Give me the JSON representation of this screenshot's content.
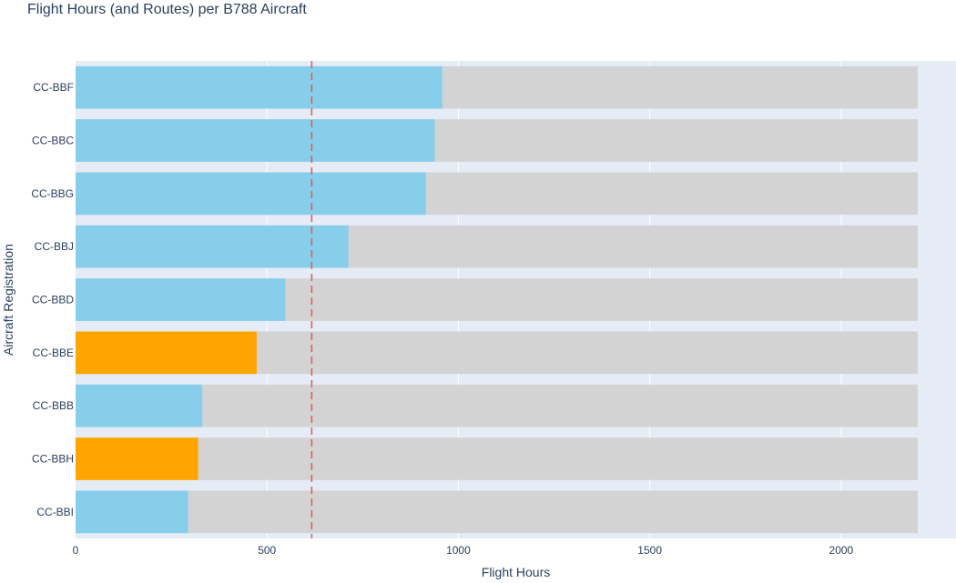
{
  "chart_data": {
    "type": "bar",
    "orientation": "horizontal",
    "barmode": "overlay",
    "title": "Flight Hours (and Routes) per B788 Aircraft",
    "xlabel": "Flight Hours",
    "ylabel": "Aircraft Registration",
    "xlim": [
      0,
      2300
    ],
    "xticks": [
      0,
      500,
      1000,
      1500,
      2000
    ],
    "categories": [
      "CC-BBF",
      "CC-BBC",
      "CC-BBG",
      "CC-BBJ",
      "CC-BBD",
      "CC-BBE",
      "CC-BBB",
      "CC-BBH",
      "CC-BBI"
    ],
    "capacity": 2200,
    "values": [
      958,
      938,
      915,
      713,
      548,
      473,
      331,
      320,
      294
    ],
    "highlighted": [
      false,
      false,
      false,
      false,
      false,
      true,
      false,
      true,
      false
    ],
    "reference_line": 617,
    "colors": {
      "bar": "#87ceeb",
      "highlight": "#ffa500",
      "background_bar": "#d3d3d3",
      "plot_bg": "#e5ecf6",
      "grid": "#ffffff",
      "reference_line": "#e45756"
    },
    "grid": true
  }
}
